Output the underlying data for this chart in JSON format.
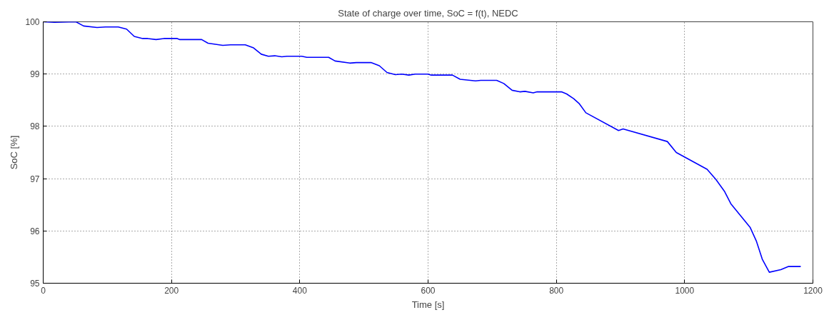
{
  "chart_data": {
    "type": "line",
    "title": "State of charge over time, SoC = f(t), NEDC",
    "xlabel": "Time [s]",
    "ylabel": "SoC [%]",
    "xlim": [
      0,
      1200
    ],
    "xticks": [
      0,
      200,
      400,
      600,
      800,
      1000,
      1200
    ],
    "ylim": [
      95,
      100
    ],
    "yticks": [
      95,
      96,
      97,
      98,
      99,
      100
    ],
    "grid": true,
    "marker": "none",
    "line_style": "solid",
    "series": [
      {
        "color": "#0000ff",
        "x": [
          0,
          17.5,
          51,
          63,
          84,
          97,
          117,
          130,
          142,
          155,
          163,
          176,
          188,
          209,
          213,
          247,
          257,
          280,
          292,
          315,
          328,
          340,
          351,
          361,
          372,
          380,
          403,
          411,
          445,
          455,
          478,
          488,
          511,
          524,
          536,
          549,
          559,
          570,
          580,
          600,
          605,
          638,
          650,
          674,
          682,
          707,
          718,
          731,
          743,
          751,
          764,
          770,
          808,
          816,
          827,
          836,
          846,
          897,
          904,
          973,
          987,
          1035,
          1049,
          1062,
          1072,
          1102,
          1112,
          1121,
          1132,
          1150,
          1162,
          1181
        ],
        "values": [
          100.0,
          99.99,
          100.0,
          99.92,
          99.89,
          99.9,
          99.9,
          99.86,
          99.72,
          99.68,
          99.68,
          99.66,
          99.68,
          99.68,
          99.66,
          99.66,
          99.59,
          99.55,
          99.56,
          99.56,
          99.5,
          99.38,
          99.34,
          99.35,
          99.33,
          99.34,
          99.34,
          99.32,
          99.32,
          99.25,
          99.21,
          99.22,
          99.22,
          99.16,
          99.03,
          98.99,
          99.0,
          98.98,
          99.0,
          99.0,
          98.98,
          98.98,
          98.9,
          98.87,
          98.88,
          98.88,
          98.82,
          98.69,
          98.66,
          98.67,
          98.64,
          98.66,
          98.66,
          98.62,
          98.53,
          98.43,
          98.26,
          97.92,
          97.95,
          97.71,
          97.5,
          97.18,
          96.98,
          96.76,
          96.52,
          96.07,
          95.8,
          95.46,
          95.21,
          95.26,
          95.32,
          95.32
        ]
      }
    ]
  }
}
